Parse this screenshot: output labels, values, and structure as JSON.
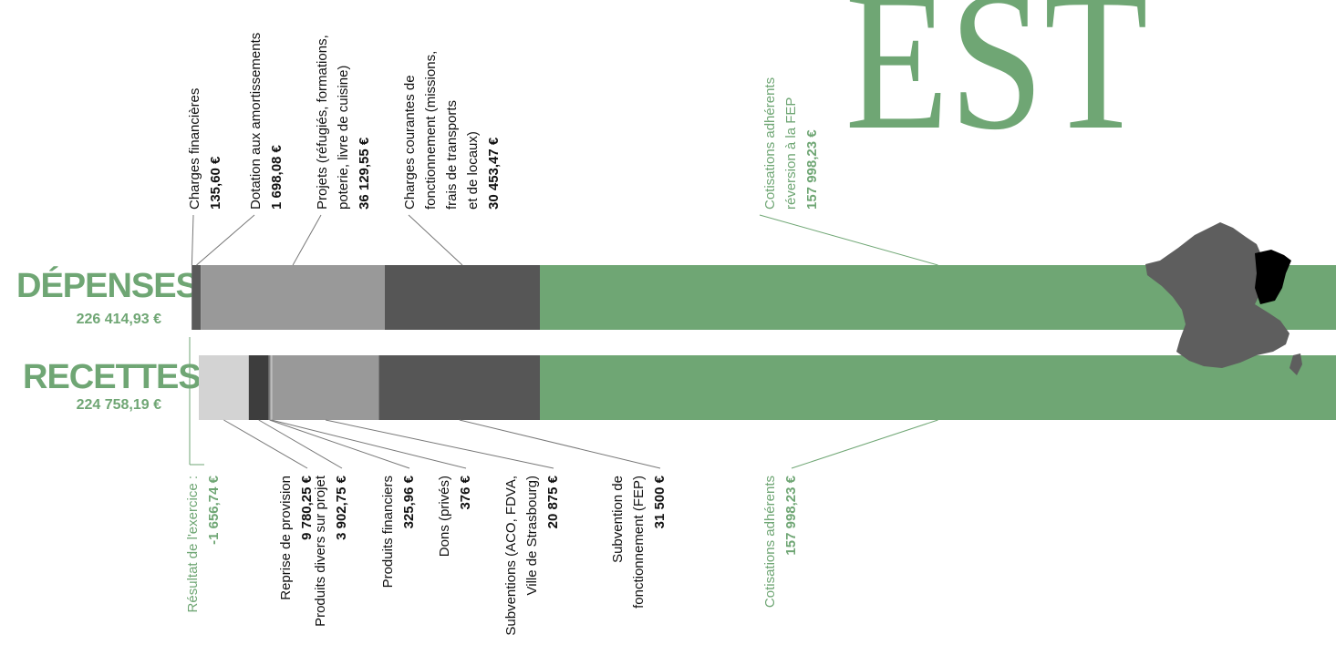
{
  "chart_data": {
    "type": "bar",
    "orientation": "horizontal-stacked",
    "header_fragment": "EST",
    "depenses": {
      "label": "DÉPENSES",
      "total": "226 414,93 €",
      "segments": [
        {
          "name": "Charges financières",
          "amount": "135,60 €",
          "value": 135.6,
          "color": "#6b6b6b"
        },
        {
          "name": "Dotation aux amortissements",
          "amount": "1 698,08 €",
          "value": 1698.08,
          "color": "#5a5a5a"
        },
        {
          "name": "Projets (réfugiés, formations, poterie, livre de cuisine)",
          "lines": [
            "Projets (réfugiés, formations,",
            "poterie, livre de cuisine)"
          ],
          "amount": "36 129,55 €",
          "value": 36129.55,
          "color": "#999999"
        },
        {
          "name": "Charges courantes de fonctionnement (missions, frais de transports et de locaux)",
          "lines": [
            "Charges courantes de",
            "fonctionnement (missions,",
            "frais de transports",
            "et de locaux)"
          ],
          "amount": "30 453,47 €",
          "value": 30453.47,
          "color": "#565656"
        },
        {
          "name": "Cotisations adhérents réversion à la FEP",
          "lines": [
            "Cotisations adhérents",
            "réversion à la FEP"
          ],
          "amount": "157 998,23 €",
          "value": 157998.23,
          "color": "#6fa674"
        }
      ]
    },
    "recettes": {
      "label": "RECETTES",
      "total": "224 758,19 €",
      "segments": [
        {
          "name": "Reprise de provision",
          "amount": "9 780,25 €",
          "value": 9780.25,
          "color": "#d3d3d3"
        },
        {
          "name": "Produits divers sur projet",
          "amount": "3 902,75 €",
          "value": 3902.75,
          "color": "#3d3d3d"
        },
        {
          "name": "Produits financiers",
          "amount": "325,96 €",
          "value": 325.96,
          "color": "#7a7a7a"
        },
        {
          "name": "Dons (privés)",
          "amount": "376 €",
          "value": 376,
          "color": "#bdbdbd"
        },
        {
          "name": "Subventions (ACO, FDVA, Ville de Strasbourg)",
          "lines": [
            "Subventions (ACO, FDVA,",
            "Ville de Strasbourg)"
          ],
          "amount": "20 875 €",
          "value": 20875,
          "color": "#999999"
        },
        {
          "name": "Subvention de fonctionnement (FEP)",
          "lines": [
            "Subvention de",
            "fonctionnement (FEP)"
          ],
          "amount": "31 500 €",
          "value": 31500,
          "color": "#565656"
        },
        {
          "name": "Cotisations adhérents",
          "amount": "157 998,23 €",
          "value": 157998.23,
          "color": "#6fa674"
        }
      ]
    },
    "resultat": {
      "label": "Résultat de l'exercice :",
      "amount": "-1 656,74 €",
      "value": -1656.74
    },
    "colors": {
      "accent": "#6fa674",
      "text": "#111111",
      "map_fill": "#5e5e5e",
      "map_highlight": "#000000"
    },
    "map": {
      "icon": "france-map-icon",
      "highlighted_region": "Grand Est"
    }
  }
}
